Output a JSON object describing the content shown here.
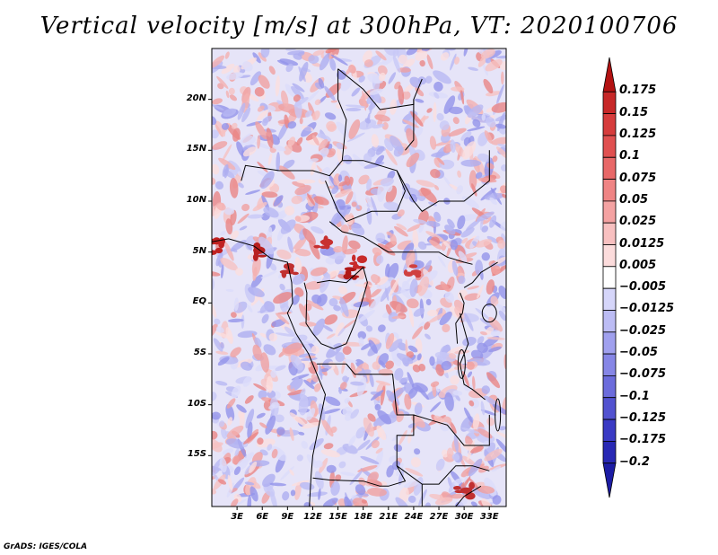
{
  "title": "Vertical velocity [m/s] at 300hPa, VT: 2020100706",
  "credit": "GrADS: IGES/COLA",
  "map": {
    "lat_labels": [
      "20N",
      "15N",
      "10N",
      "5N",
      "EQ",
      "5S",
      "10S",
      "15S"
    ],
    "lat_values": [
      20,
      15,
      10,
      5,
      0,
      -5,
      -10,
      -15
    ],
    "lon_labels": [
      "3E",
      "6E",
      "9E",
      "12E",
      "15E",
      "18E",
      "21E",
      "24E",
      "27E",
      "30E",
      "33E"
    ],
    "lon_values": [
      3,
      6,
      9,
      12,
      15,
      18,
      21,
      24,
      27,
      30,
      33
    ],
    "lon_range": [
      0,
      35
    ],
    "lat_range": [
      -20,
      25
    ]
  },
  "colorbar": {
    "labels": [
      "0.175",
      "0.15",
      "0.125",
      "0.1",
      "0.075",
      "0.05",
      "0.025",
      "0.0125",
      "0.005",
      "−0.005",
      "−0.0125",
      "−0.025",
      "−0.05",
      "−0.075",
      "−0.1",
      "−0.125",
      "−0.175",
      "−0.2"
    ],
    "colors": [
      "#b31212",
      "#c72828",
      "#d63c3c",
      "#e05050",
      "#e86868",
      "#ef8484",
      "#f4a2a2",
      "#f8c0c0",
      "#fcdcdc",
      "#ffffff",
      "#d6d6fa",
      "#bcbcf4",
      "#a0a0ee",
      "#8686e6",
      "#6c6cdc",
      "#5252d0",
      "#3a3ac4",
      "#2828b4",
      "#1c1ca4"
    ]
  }
}
